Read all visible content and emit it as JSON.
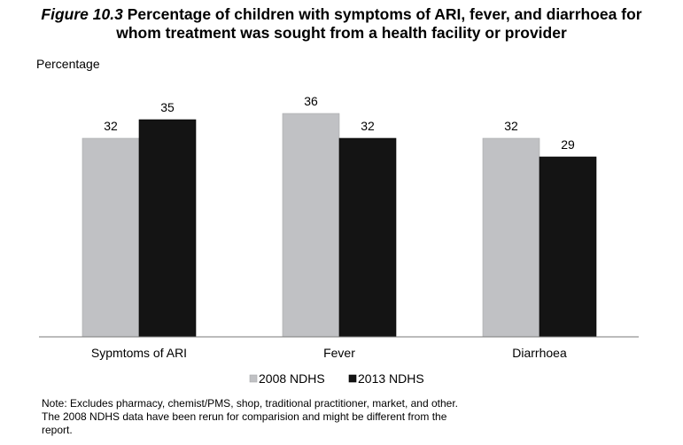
{
  "figure": {
    "label": "Figure 10.3",
    "title_line1": "Percentage of children with symptoms of ARI, fever, and diarrhoea for",
    "title_line2": "whom treatment was sought from a health facility or provider"
  },
  "note": "Note: Excludes pharmacy, chemist/PMS, shop, traditional practitioner, market, and other. The 2008 NDHS data have been rerun for comparision and might be different from the report.",
  "chart_data": {
    "type": "bar",
    "ylabel": "Percentage",
    "categories": [
      "Sypmtoms of ARI",
      "Fever",
      "Diarrhoea"
    ],
    "series": [
      {
        "name": "2008 NDHS",
        "values": [
          32,
          36,
          32
        ],
        "color": "#c0c1c4"
      },
      {
        "name": "2013 NDHS",
        "values": [
          35,
          32,
          29
        ],
        "color": "#141414"
      }
    ],
    "ylim": [
      0,
      40
    ],
    "grid": false,
    "legend_position": "bottom"
  }
}
